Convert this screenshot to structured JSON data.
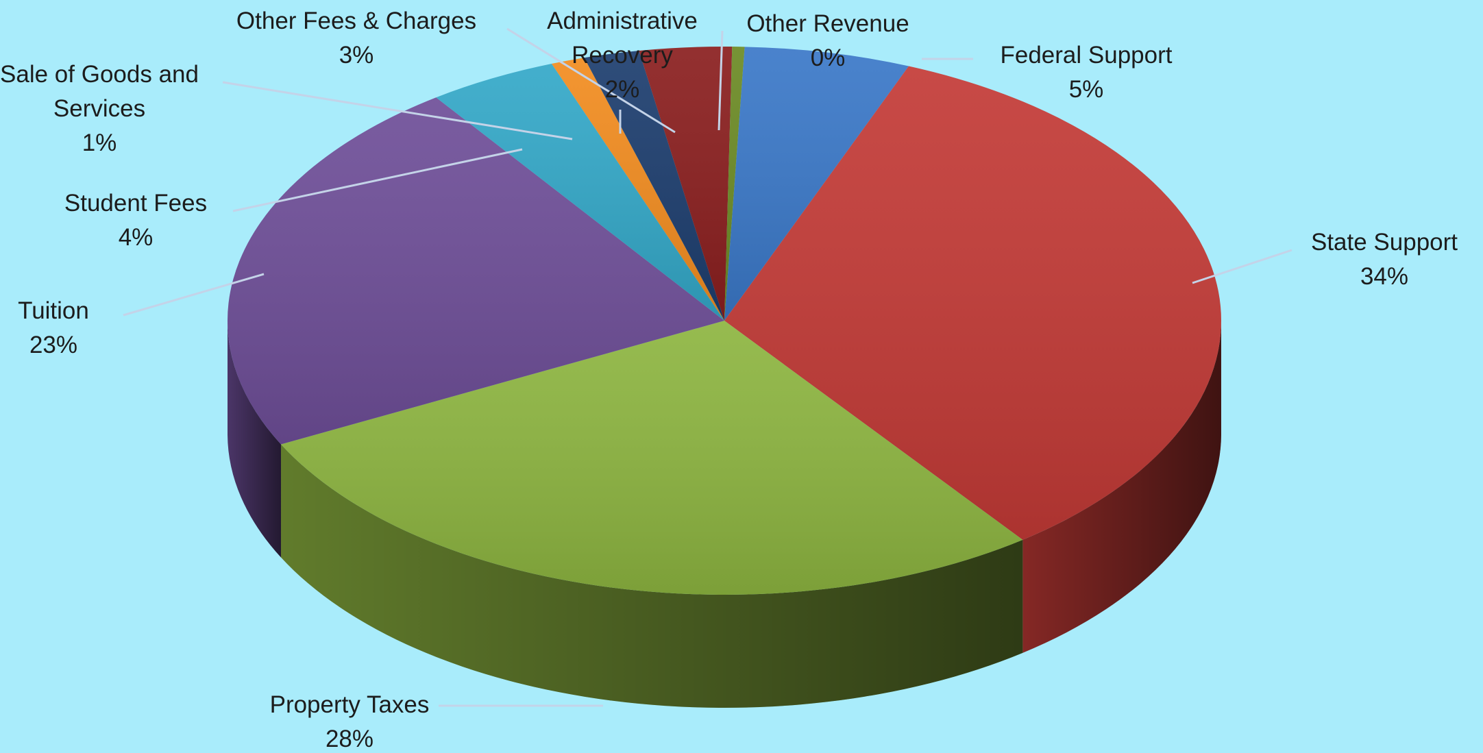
{
  "chart_data": {
    "type": "pie",
    "title": "",
    "style": "3d-exploded-none",
    "legend": "none",
    "slices": [
      {
        "name": "Federal Support",
        "label": "Federal Support",
        "pct_label": "5%",
        "value": 5.4,
        "color": "#3a78c8"
      },
      {
        "name": "State Support",
        "label": "State Support",
        "pct_label": "34%",
        "value": 33.7,
        "color": "#c33a36"
      },
      {
        "name": "Property Taxes",
        "label": "Property Taxes",
        "pct_label": "28%",
        "value": 27.8,
        "color": "#8db540"
      },
      {
        "name": "Tuition",
        "label": "Tuition",
        "pct_label": "23%",
        "value": 22.6,
        "color": "#6e4e98"
      },
      {
        "name": "Student Fees",
        "label": "Student Fees",
        "pct_label": "4%",
        "value": 4.2,
        "color": "#33a8c8"
      },
      {
        "name": "Sale of Goods and Services",
        "label_lines": [
          "Sale of Goods and",
          "Services"
        ],
        "pct_label": "1%",
        "value": 1.1,
        "color": "#f28c1f"
      },
      {
        "name": "Administrative Recovery",
        "label_lines": [
          "Administrative",
          "Recovery"
        ],
        "pct_label": "2%",
        "value": 1.8,
        "color": "#1c3d6e"
      },
      {
        "name": "Other Fees & Charges",
        "label": "Other Fees & Charges",
        "pct_label": "3%",
        "value": 3.0,
        "color": "#8a1e1e"
      },
      {
        "name": "Other Revenue",
        "label": "Other Revenue",
        "pct_label": "0%",
        "value": 0.4,
        "color": "#6b8a24"
      }
    ]
  }
}
